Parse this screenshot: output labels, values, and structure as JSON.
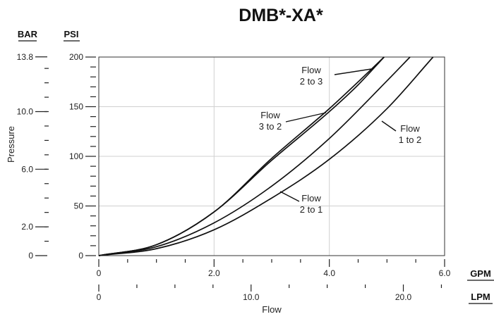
{
  "chart_data": {
    "type": "line",
    "title": "DMB*-XA*",
    "xlabel": "Flow",
    "ylabel": "Pressure",
    "x_unit_primary": "GPM",
    "x_unit_secondary": "LPM",
    "y_unit_primary": "PSI",
    "y_unit_secondary": "BAR",
    "xlim": [
      0,
      6
    ],
    "ylim": [
      0,
      200
    ],
    "grid": true,
    "x_ticks_gpm": [
      "0",
      "2.0",
      "4.0",
      "6.0"
    ],
    "x_ticks_lpm": [
      "0",
      "10.0",
      "20.0"
    ],
    "y_ticks_psi": [
      "0",
      "50",
      "100",
      "150",
      "200"
    ],
    "y_ticks_bar": [
      "0",
      "2.0",
      "6.0",
      "10.0",
      "13.8"
    ],
    "series": [
      {
        "name": "Flow 2 to 3",
        "label_lines": [
          "Flow",
          "2 to 3"
        ],
        "x": [
          0,
          1,
          2,
          3,
          4,
          4.5,
          4.95
        ],
        "y": [
          0,
          11,
          44,
          98,
          148,
          175,
          200
        ]
      },
      {
        "name": "Flow 3 to 2",
        "label_lines": [
          "Flow",
          "3 to 2"
        ],
        "x": [
          0,
          1,
          2,
          3,
          4,
          4.5,
          4.95
        ],
        "y": [
          0,
          11,
          44,
          96,
          145,
          172,
          200
        ]
      },
      {
        "name": "Flow 1 to 2",
        "label_lines": [
          "Flow",
          "1 to 2"
        ],
        "x": [
          0,
          1,
          2,
          3,
          4,
          5,
          5.8
        ],
        "y": [
          0,
          7,
          26,
          58,
          97,
          148,
          200
        ]
      },
      {
        "name": "Flow 2 to 1",
        "label_lines": [
          "Flow",
          "2 to 1"
        ],
        "x": [
          0,
          1,
          2,
          3,
          4,
          5,
          5.4
        ],
        "y": [
          0,
          9,
          33,
          70,
          118,
          176,
          200
        ]
      }
    ]
  }
}
